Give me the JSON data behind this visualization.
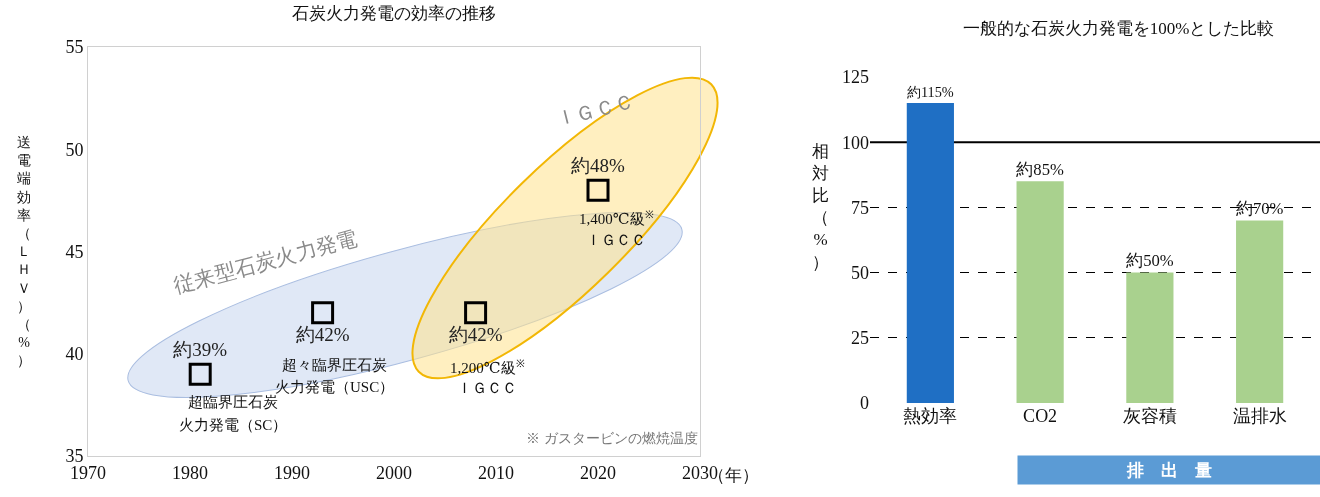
{
  "chart_data": [
    {
      "type": "scatter",
      "title": "石炭火力発電の効率の推移",
      "xlabel": "（年）",
      "ylabel": "送電端効率（ＬＨＶ）（%）",
      "x": [
        1981,
        1993,
        2008,
        2020
      ],
      "values": [
        39,
        42,
        42,
        48
      ],
      "color": "#000000",
      "marker": "square",
      "value_labels": [
        "約39%",
        "約42%",
        "約42%",
        "約48%"
      ],
      "xlim": [
        1970,
        2030
      ],
      "xticks": [
        1970,
        1980,
        1990,
        2000,
        2010,
        2020,
        2030
      ],
      "ylim": [
        35,
        55
      ],
      "yticks": [
        35,
        40,
        45,
        50,
        55
      ],
      "grid": false,
      "legend": false,
      "annotations": [
        "超臨界圧石炭",
        "火力発電（SC）",
        "超々臨界圧石炭",
        "火力発電（USC）",
        "1,200℃級$^{※}$",
        "ＩＧＣＣ",
        "1,400℃級$^{※}$",
        "ＩＧＣＣ",
        "従来型石炭火力発電",
        "ＩＧＣＣ",
        "※ ガスタービンの燃焼温度"
      ]
    },
    {
      "type": "bar",
      "title": "一般的な石炭火力発電を100%とした比較",
      "ylabel": "相対比（%）",
      "categories": [
        "熱効率",
        "CO2",
        "灰容積",
        "温排水"
      ],
      "values": [
        115,
        85,
        50,
        70
      ],
      "colors": [
        "#1f6fc4",
        "#a9d18e",
        "#a9d18e",
        "#a9d18e"
      ],
      "value_labels": [
        "約115%",
        "約85%",
        "約50%",
        "約70%"
      ],
      "ylim": [
        0,
        125
      ],
      "yticks": [
        0,
        25,
        50,
        75,
        100,
        125
      ],
      "grid": "y",
      "line_style": "dashed",
      "legend": false,
      "ref_lines": [
        {
          "axis": "y",
          "value": 100,
          "color": "#000000",
          "line_style": "solid"
        }
      ],
      "annotations": [
        "排　出　量"
      ]
    }
  ]
}
